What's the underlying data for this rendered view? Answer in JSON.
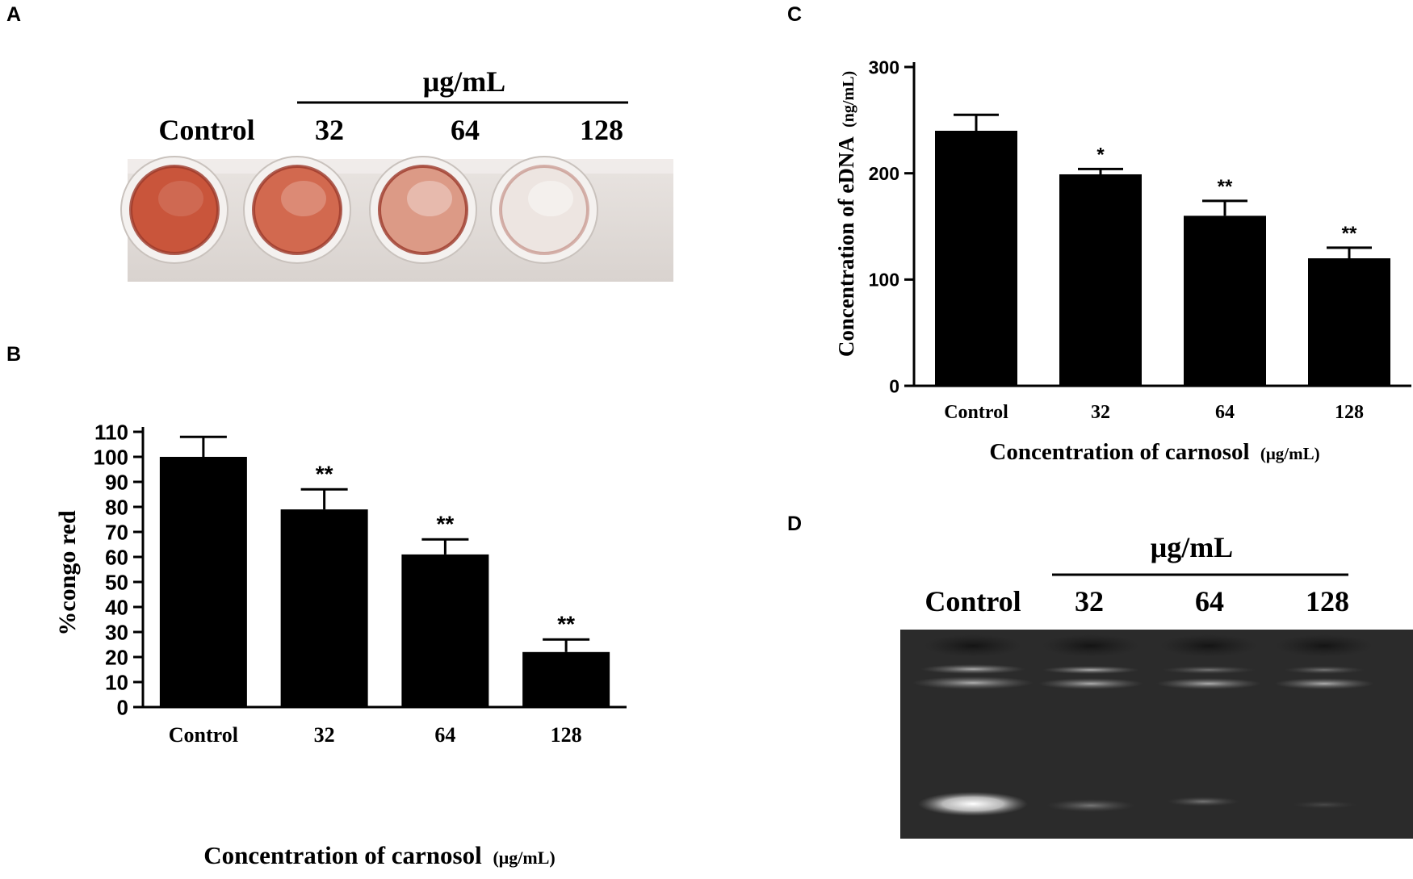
{
  "figure": {
    "panels": {
      "a": {
        "letter": "A"
      },
      "b": {
        "letter": "B"
      },
      "c": {
        "letter": "C"
      },
      "d": {
        "letter": "D"
      }
    },
    "photo_a": {
      "unit_label": "μg/mL",
      "lane_labels": [
        "Control",
        "32",
        "64",
        "128"
      ],
      "well_colors": [
        "#c9553b",
        "#d2694f",
        "#dc9a86",
        "#ede5e1"
      ]
    },
    "gel_d": {
      "unit_label": "μg/mL",
      "lane_labels": [
        "Control",
        "32",
        "64",
        "128"
      ]
    }
  },
  "chart_data": [
    {
      "panel": "B",
      "type": "bar",
      "categories": [
        "Control",
        "32",
        "64",
        "128"
      ],
      "values": [
        100,
        79,
        61,
        22
      ],
      "error": [
        8,
        8,
        6,
        5
      ],
      "significance": [
        "",
        "**",
        "**",
        "**"
      ],
      "xlabel": "Concentration of carnosol",
      "xlabel_unit": "(μg/mL)",
      "ylabel": "%congo red",
      "ylim": [
        0,
        110
      ],
      "yticks": [
        0,
        10,
        20,
        30,
        40,
        50,
        60,
        70,
        80,
        90,
        100,
        110
      ],
      "bar_color": "#000000",
      "grid": false
    },
    {
      "panel": "C",
      "type": "bar",
      "categories": [
        "Control",
        "32",
        "64",
        "128"
      ],
      "values": [
        240,
        199,
        160,
        120
      ],
      "error": [
        15,
        5,
        14,
        10
      ],
      "significance": [
        "",
        "*",
        "**",
        "**"
      ],
      "xlabel": "Concentration of carnosol",
      "xlabel_unit": "(μg/mL)",
      "ylabel": "Concentration  of eDNA",
      "ylabel_unit": "(ng/mL)",
      "ylim": [
        0,
        300
      ],
      "yticks": [
        0,
        100,
        200,
        300
      ],
      "bar_color": "#000000",
      "grid": false
    }
  ]
}
